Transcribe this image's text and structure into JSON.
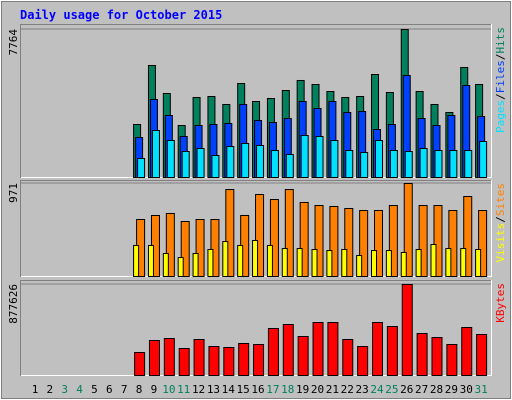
{
  "chart_data": {
    "type": "bar",
    "title": "Daily usage for October 2015",
    "categories": [
      "1",
      "2",
      "3",
      "4",
      "5",
      "6",
      "7",
      "8",
      "9",
      "10",
      "11",
      "12",
      "13",
      "14",
      "15",
      "16",
      "17",
      "18",
      "19",
      "20",
      "21",
      "22",
      "23",
      "24",
      "25",
      "26",
      "27",
      "28",
      "29",
      "30",
      "31"
    ],
    "category_colors": [
      "#000000",
      "#000000",
      "#00805c",
      "#00805c",
      "#000000",
      "#000000",
      "#000000",
      "#000000",
      "#000000",
      "#00805c",
      "#00805c",
      "#000000",
      "#000000",
      "#000000",
      "#000000",
      "#000000",
      "#00805c",
      "#00805c",
      "#000000",
      "#000000",
      "#000000",
      "#000000",
      "#000000",
      "#00805c",
      "#00805c",
      "#000000",
      "#000000",
      "#000000",
      "#000000",
      "#000000",
      "#00805c"
    ],
    "legend_separator": "/",
    "panels": [
      {
        "ylim": [
          0,
          7764
        ],
        "yticks": [
          7764
        ],
        "series": [
          {
            "name": "Hits",
            "color": "#00805c",
            "values": [
              null,
              null,
              null,
              null,
              null,
              null,
              null,
              2780,
              5876,
              4407,
              2728,
              4197,
              4249,
              3830,
              4931,
              3987,
              4144,
              4564,
              5089,
              4879,
              4512,
              4197,
              4249,
              5403,
              4459,
              7764,
              4512,
              3830,
              3410,
              5771,
              4879
            ]
          },
          {
            "name": "Files",
            "color": "#0040ff",
            "values": [
              null,
              null,
              null,
              null,
              null,
              null,
              null,
              2098,
              4092,
              3253,
              2151,
              2728,
              2780,
              2833,
              3830,
              2990,
              2885,
              3095,
              3987,
              3620,
              3987,
              3410,
              3462,
              2518,
              2780,
              5351,
              3095,
              2728,
              3253,
              4826,
              3200
            ]
          },
          {
            "name": "Pages",
            "color": "#00e0ff",
            "values": [
              null,
              null,
              null,
              null,
              null,
              null,
              null,
              997,
              2466,
              1941,
              1364,
              1521,
              1154,
              1626,
              1784,
              1679,
              1416,
              1207,
              2203,
              2151,
              1941,
              1416,
              1312,
              1941,
              1416,
              1364,
              1521,
              1416,
              1416,
              1416,
              1889
            ]
          }
        ]
      },
      {
        "ylim": [
          0,
          971
        ],
        "yticks": [
          971
        ],
        "series": [
          {
            "name": "Sites",
            "color": "#ff8000",
            "values": [
              null,
              null,
              null,
              null,
              null,
              null,
              null,
              595,
              637,
              658,
              574,
              595,
              595,
              908,
              637,
              856,
              804,
              908,
              773,
              741,
              731,
              710,
              689,
              689,
              741,
              971,
              741,
              741,
              689,
              835,
              689
            ]
          },
          {
            "name": "Visits",
            "color": "#ffff00",
            "values": [
              null,
              null,
              null,
              null,
              null,
              null,
              null,
              324,
              324,
              240,
              198,
              240,
              282,
              365,
              324,
              376,
              324,
              292,
              292,
              282,
              271,
              282,
              219,
              271,
              271,
              251,
              282,
              334,
              292,
              292,
              282
            ]
          }
        ]
      },
      {
        "ylim": [
          0,
          877626
        ],
        "yticks": [
          877626
        ],
        "series": [
          {
            "name": "KBytes",
            "color": "#ff0000",
            "values": [
              null,
              null,
              null,
              null,
              null,
              null,
              null,
              221812,
              337540,
              356828,
              260388,
              347184,
              279676,
              270032,
              308608,
              298964,
              453268,
              491844,
              376116,
              511132,
              511132,
              347184,
              279676,
              511132,
              472556,
              877626,
              405048,
              366472,
              298964,
              462912,
              395404
            ]
          }
        ]
      }
    ]
  }
}
